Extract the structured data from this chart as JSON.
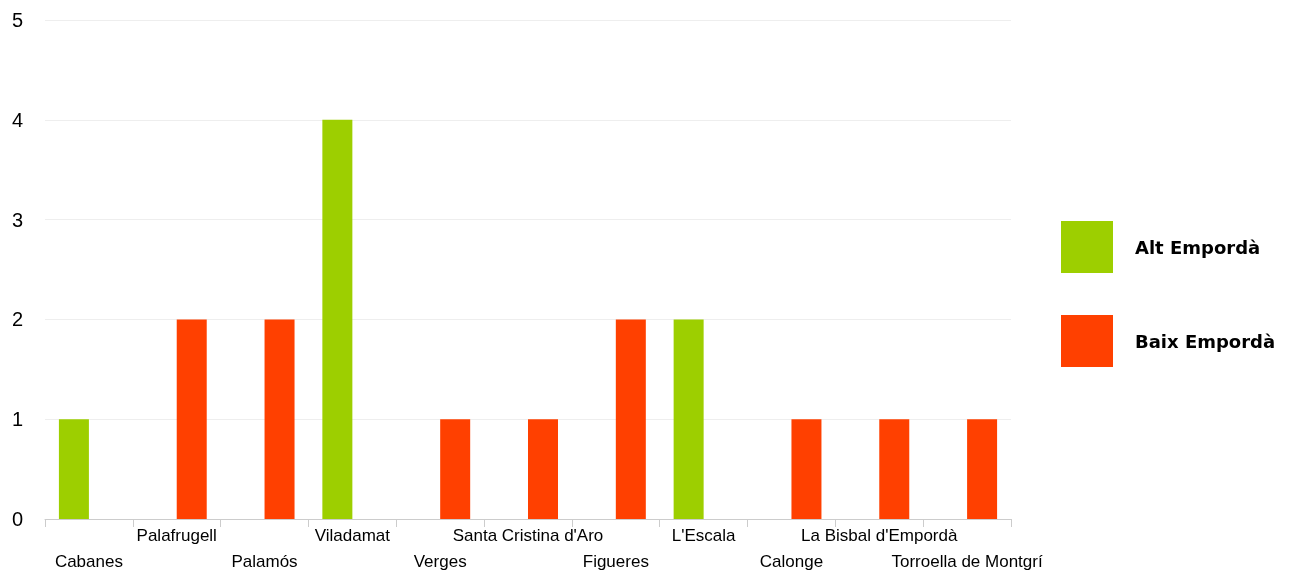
{
  "chart_data": {
    "type": "bar",
    "categories": [
      "Cabanes",
      "Palafrugell",
      "Palamós",
      "Viladamat",
      "Verges",
      "Santa Cristina d'Aro",
      "Figueres",
      "L'Escala",
      "Calonge",
      "La Bisbal d'Empordà",
      "Torroella de Montgrí"
    ],
    "series": [
      {
        "name": "Alt Empordà",
        "color": "#9dcf00",
        "values": [
          1,
          null,
          null,
          4,
          null,
          null,
          null,
          2,
          null,
          null,
          null
        ]
      },
      {
        "name": "Baix Empordà",
        "color": "#ff4000",
        "values": [
          null,
          2,
          2,
          null,
          1,
          1,
          2,
          null,
          1,
          1,
          1
        ]
      }
    ],
    "ylim": [
      0,
      5
    ],
    "yticks": [
      0,
      1,
      2,
      3,
      4,
      5
    ],
    "grid": "y",
    "legend": "right"
  }
}
